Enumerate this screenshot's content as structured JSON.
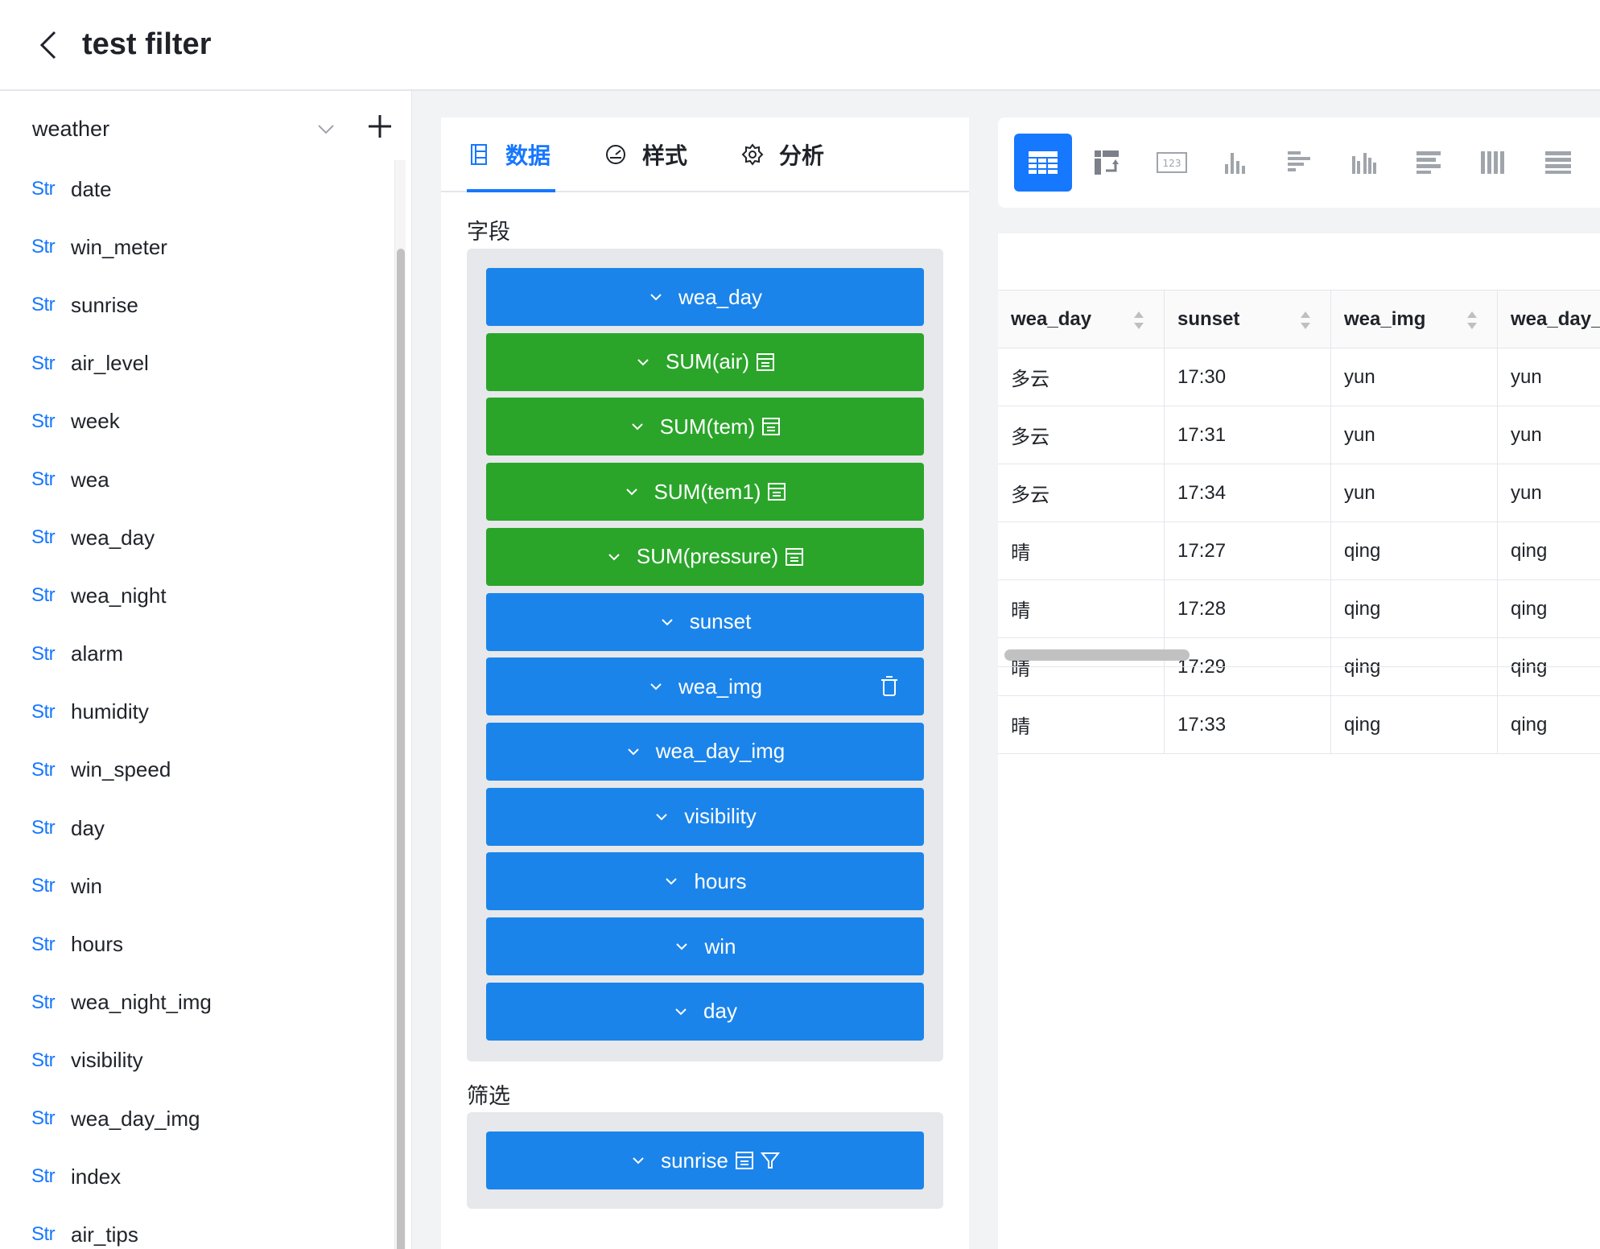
{
  "header": {
    "title": "test filter"
  },
  "datasource": {
    "name": "weather"
  },
  "fields": [
    {
      "type": "Str",
      "name": "date"
    },
    {
      "type": "Str",
      "name": "win_meter"
    },
    {
      "type": "Str",
      "name": "sunrise"
    },
    {
      "type": "Str",
      "name": "air_level"
    },
    {
      "type": "Str",
      "name": "week"
    },
    {
      "type": "Str",
      "name": "wea"
    },
    {
      "type": "Str",
      "name": "wea_day"
    },
    {
      "type": "Str",
      "name": "wea_night"
    },
    {
      "type": "Str",
      "name": "alarm"
    },
    {
      "type": "Str",
      "name": "humidity"
    },
    {
      "type": "Str",
      "name": "win_speed"
    },
    {
      "type": "Str",
      "name": "day"
    },
    {
      "type": "Str",
      "name": "win"
    },
    {
      "type": "Str",
      "name": "hours"
    },
    {
      "type": "Str",
      "name": "wea_night_img"
    },
    {
      "type": "Str",
      "name": "visibility"
    },
    {
      "type": "Str",
      "name": "wea_day_img"
    },
    {
      "type": "Str",
      "name": "index"
    },
    {
      "type": "Str",
      "name": "air_tips"
    }
  ],
  "tabs": [
    {
      "label": "数据",
      "icon": "data-icon",
      "active": true
    },
    {
      "label": "样式",
      "icon": "palette-icon",
      "active": false
    },
    {
      "label": "分析",
      "icon": "gear-icon",
      "active": false
    }
  ],
  "sections": {
    "fields_label": "字段",
    "filter_label": "筛选"
  },
  "field_chips": [
    {
      "label": "wea_day",
      "color": "blue"
    },
    {
      "label": "SUM(air)",
      "color": "green",
      "mark": true
    },
    {
      "label": "SUM(tem)",
      "color": "green",
      "mark": true
    },
    {
      "label": "SUM(tem1)",
      "color": "green",
      "mark": true
    },
    {
      "label": "SUM(pressure)",
      "color": "green",
      "mark": true
    },
    {
      "label": "sunset",
      "color": "blue"
    },
    {
      "label": "wea_img",
      "color": "blue",
      "trash": true
    },
    {
      "label": "wea_day_img",
      "color": "blue"
    },
    {
      "label": "visibility",
      "color": "blue"
    },
    {
      "label": "hours",
      "color": "blue"
    },
    {
      "label": "win",
      "color": "blue"
    },
    {
      "label": "day",
      "color": "blue"
    }
  ],
  "filter_chips": [
    {
      "label": "sunrise",
      "color": "blue",
      "mark": true,
      "filter": true
    }
  ],
  "chart_types": [
    "table-icon",
    "pivot-table-icon",
    "number-card-icon",
    "bar-chart-icon",
    "horizontal-bar-icon",
    "grouped-bar-icon",
    "stacked-horizontal-bar-icon",
    "stacked-bar-icon",
    "percent-stacked-bar-icon"
  ],
  "colors": {
    "accent": "#1677ff",
    "chip_blue": "#1b84ea",
    "chip_green": "#2aa52a"
  },
  "table": {
    "columns": [
      "wea_day",
      "sunset",
      "wea_img",
      "wea_day_"
    ],
    "rows": [
      [
        "多云",
        "17:30",
        "yun",
        "yun"
      ],
      [
        "多云",
        "17:31",
        "yun",
        "yun"
      ],
      [
        "多云",
        "17:34",
        "yun",
        "yun"
      ],
      [
        "晴",
        "17:27",
        "qing",
        "qing"
      ],
      [
        "晴",
        "17:28",
        "qing",
        "qing"
      ],
      [
        "晴",
        "17:29",
        "qing",
        "qing"
      ],
      [
        "晴",
        "17:33",
        "qing",
        "qing"
      ]
    ]
  }
}
